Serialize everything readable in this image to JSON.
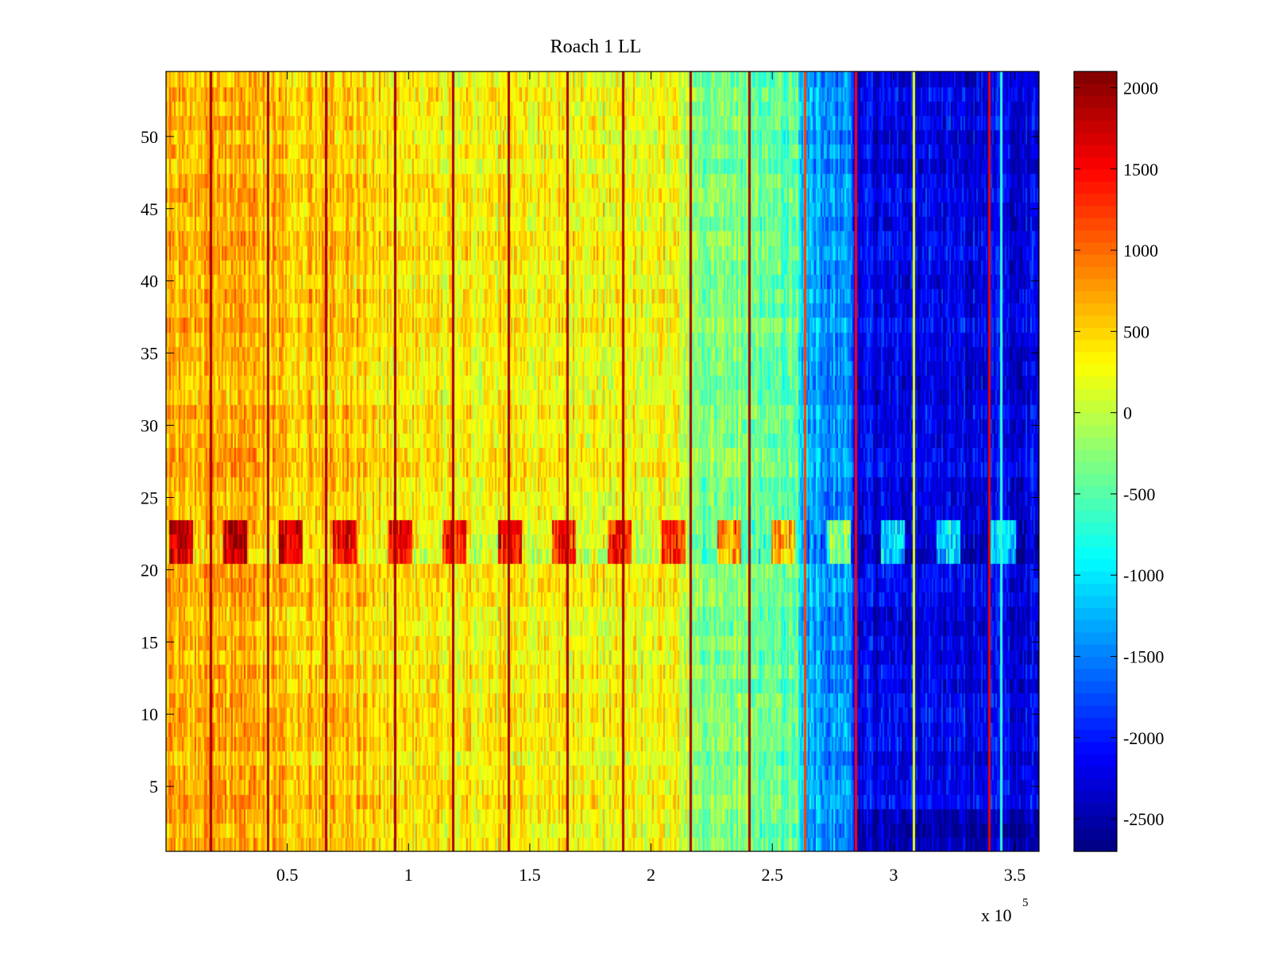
{
  "chart_data": {
    "type": "heatmap",
    "title": "Roach 1 LL",
    "xlabel": "",
    "ylabel": "",
    "x_range": [
      0,
      360000
    ],
    "y_range": [
      0.5,
      54.5
    ],
    "x_ticks": [
      50000,
      100000,
      150000,
      200000,
      250000,
      300000,
      350000
    ],
    "x_tick_labels": [
      "0.5",
      "1",
      "1.5",
      "2",
      "2.5",
      "3",
      "3.5"
    ],
    "x_exponent_label": "x 10",
    "x_exponent_power": "5",
    "y_ticks": [
      5,
      10,
      15,
      20,
      25,
      30,
      35,
      40,
      45,
      50
    ],
    "y_tick_labels": [
      "5",
      "10",
      "15",
      "20",
      "25",
      "30",
      "35",
      "40",
      "45",
      "50"
    ],
    "colormap": "jet",
    "color_limits": [
      -2700,
      2100
    ],
    "colorbar_ticks": [
      2000,
      1500,
      1000,
      500,
      0,
      -500,
      -1000,
      -1500,
      -2000,
      -2500
    ],
    "colorbar_tick_labels": [
      "2000",
      "1500",
      "1000",
      "500",
      "0",
      "-500",
      "-1000",
      "-1500",
      "-2000",
      "-2500"
    ],
    "background_profile": [
      {
        "x": 0,
        "value": 650
      },
      {
        "x": 30000,
        "value": 650
      },
      {
        "x": 70000,
        "value": 550
      },
      {
        "x": 120000,
        "value": 350
      },
      {
        "x": 170000,
        "value": 300
      },
      {
        "x": 210000,
        "value": 250
      },
      {
        "x": 220000,
        "value": -300
      },
      {
        "x": 260000,
        "value": -450
      },
      {
        "x": 262000,
        "value": -1300
      },
      {
        "x": 282000,
        "value": -1450
      },
      {
        "x": 284000,
        "value": -2150
      },
      {
        "x": 360000,
        "value": -2250
      }
    ],
    "row_bands": [
      {
        "rows": [
          21,
          23
        ],
        "label": "high-variance rows",
        "amplitude": 1400
      },
      {
        "rows": [
          1,
          3
        ],
        "label": "bottom rows",
        "offset_after_284000": -300
      }
    ],
    "vertical_lines": [
      {
        "x": 18000,
        "value": 1900
      },
      {
        "x": 41500,
        "value": 1900
      },
      {
        "x": 65500,
        "value": 1900
      },
      {
        "x": 94000,
        "value": 1900
      },
      {
        "x": 118000,
        "value": 1900
      },
      {
        "x": 141000,
        "value": 1900
      },
      {
        "x": 165000,
        "value": 1900
      },
      {
        "x": 188000,
        "value": 1900
      },
      {
        "x": 216000,
        "value": 1900
      },
      {
        "x": 240000,
        "value": 1900
      },
      {
        "x": 263000,
        "value": 1200
      },
      {
        "x": 284000,
        "value": 1500
      },
      {
        "x": 308000,
        "value": 200
      },
      {
        "x": 339000,
        "value": 1600
      },
      {
        "x": 344000,
        "value": -700
      }
    ]
  }
}
